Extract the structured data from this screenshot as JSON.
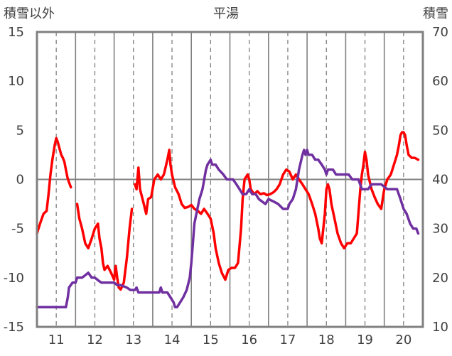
{
  "chart_data": {
    "type": "line",
    "title": "平湯",
    "left_axis_label": "積雪以外",
    "right_axis_label": "積雪",
    "x_ticks": [
      "11",
      "12",
      "13",
      "14",
      "15",
      "16",
      "17",
      "18",
      "19",
      "20"
    ],
    "x_range": [
      10.5,
      20.5
    ],
    "y_left": {
      "min": -15,
      "max": 15,
      "ticks": [
        "15",
        "10",
        "5",
        "0",
        "-5",
        "-10",
        "-15"
      ]
    },
    "y_right": {
      "min": 10,
      "max": 70,
      "ticks": [
        "70",
        "60",
        "50",
        "40",
        "30",
        "20",
        "10"
      ]
    },
    "grid": true,
    "colors": {
      "temperature": "#ff0000",
      "snow_depth": "#7030a0",
      "frame": "#808080",
      "grid": "#808080"
    },
    "series": [
      {
        "axis": "left",
        "color": "#ff0000",
        "segments": [
          [
            [
              10.5,
              -5.5
            ],
            [
              10.58,
              -4.5
            ],
            [
              10.67,
              -3.5
            ],
            [
              10.75,
              -3.2
            ],
            [
              10.8,
              -1.5
            ],
            [
              10.85,
              0.5
            ],
            [
              10.9,
              2
            ],
            [
              10.96,
              3.5
            ],
            [
              11.0,
              4.2
            ],
            [
              11.04,
              3.8
            ],
            [
              11.08,
              3.2
            ],
            [
              11.13,
              2.5
            ],
            [
              11.17,
              2.2
            ],
            [
              11.21,
              1.8
            ],
            [
              11.25,
              1
            ],
            [
              11.29,
              0.2
            ],
            [
              11.33,
              -0.3
            ],
            [
              11.38,
              -0.8
            ]
          ],
          [
            [
              11.54,
              -2.5
            ],
            [
              11.6,
              -4
            ],
            [
              11.67,
              -5
            ],
            [
              11.75,
              -6.5
            ],
            [
              11.83,
              -7
            ],
            [
              11.92,
              -6
            ],
            [
              12.0,
              -5
            ],
            [
              12.08,
              -4.5
            ],
            [
              12.12,
              -6
            ],
            [
              12.17,
              -7
            ],
            [
              12.21,
              -8.5
            ],
            [
              12.25,
              -9.2
            ],
            [
              12.33,
              -8.8
            ],
            [
              12.42,
              -9.5
            ],
            [
              12.5,
              -10.2
            ],
            [
              12.54,
              -8.8
            ],
            [
              12.58,
              -10
            ],
            [
              12.62,
              -11
            ],
            [
              12.67,
              -11.2
            ],
            [
              12.75,
              -10.5
            ],
            [
              12.83,
              -8
            ],
            [
              12.9,
              -5
            ],
            [
              12.96,
              -3
            ]
          ],
          [
            [
              13.04,
              -0.5
            ],
            [
              13.08,
              -1
            ],
            [
              13.13,
              1.2
            ],
            [
              13.17,
              -1
            ],
            [
              13.25,
              -2.2
            ],
            [
              13.33,
              -3.5
            ],
            [
              13.38,
              -2
            ],
            [
              13.46,
              -1.8
            ],
            [
              13.54,
              0
            ],
            [
              13.63,
              0.5
            ],
            [
              13.71,
              0
            ],
            [
              13.79,
              0.5
            ],
            [
              13.88,
              2
            ],
            [
              13.93,
              3
            ],
            [
              13.96,
              1.5
            ],
            [
              14.0,
              0.5
            ],
            [
              14.08,
              -0.8
            ],
            [
              14.17,
              -1.5
            ],
            [
              14.25,
              -2.5
            ],
            [
              14.33,
              -2.9
            ],
            [
              14.42,
              -2.8
            ],
            [
              14.5,
              -2.6
            ],
            [
              14.58,
              -3
            ],
            [
              14.67,
              -3.2
            ],
            [
              14.75,
              -3.5
            ],
            [
              14.83,
              -3
            ],
            [
              14.92,
              -3.5
            ],
            [
              15.0,
              -4
            ],
            [
              15.08,
              -5.5
            ],
            [
              15.13,
              -7
            ],
            [
              15.21,
              -8.5
            ],
            [
              15.29,
              -9.5
            ],
            [
              15.38,
              -10.2
            ],
            [
              15.46,
              -9.2
            ],
            [
              15.54,
              -9
            ],
            [
              15.63,
              -9
            ],
            [
              15.71,
              -8.5
            ],
            [
              15.79,
              -5
            ],
            [
              15.83,
              -2
            ],
            [
              15.88,
              0
            ],
            [
              15.96,
              0.5
            ],
            [
              16.0,
              0
            ],
            [
              16.04,
              -1
            ],
            [
              16.13,
              -1.5
            ],
            [
              16.21,
              -1.2
            ],
            [
              16.29,
              -1.5
            ],
            [
              16.38,
              -1.4
            ],
            [
              16.46,
              -1.6
            ],
            [
              16.54,
              -1.5
            ],
            [
              16.63,
              -1.3
            ],
            [
              16.71,
              -1
            ],
            [
              16.79,
              -0.5
            ],
            [
              16.88,
              0.5
            ],
            [
              16.96,
              1
            ],
            [
              17.04,
              0.8
            ],
            [
              17.13,
              0
            ],
            [
              17.21,
              0.5
            ],
            [
              17.29,
              0
            ],
            [
              17.38,
              -0.5
            ],
            [
              17.46,
              -1
            ],
            [
              17.54,
              -1.5
            ],
            [
              17.63,
              -2.5
            ],
            [
              17.71,
              -3.5
            ],
            [
              17.79,
              -5
            ],
            [
              17.83,
              -6
            ],
            [
              17.88,
              -6.5
            ],
            [
              17.92,
              -5
            ],
            [
              17.96,
              -3.5
            ],
            [
              18.0,
              -1
            ],
            [
              18.04,
              -0.5
            ],
            [
              18.08,
              -1
            ],
            [
              18.13,
              -2.5
            ],
            [
              18.21,
              -4
            ],
            [
              18.29,
              -5.5
            ],
            [
              18.38,
              -6.5
            ],
            [
              18.46,
              -7
            ],
            [
              18.54,
              -6.5
            ],
            [
              18.63,
              -6.5
            ],
            [
              18.71,
              -6
            ],
            [
              18.79,
              -5.5
            ],
            [
              18.83,
              -3.5
            ],
            [
              18.88,
              -1
            ],
            [
              18.92,
              0.5
            ],
            [
              18.96,
              1.5
            ],
            [
              19.0,
              2.8
            ],
            [
              19.04,
              2
            ],
            [
              19.08,
              0.5
            ],
            [
              19.17,
              -1
            ],
            [
              19.25,
              -1.8
            ],
            [
              19.33,
              -2.5
            ],
            [
              19.42,
              -3
            ],
            [
              19.46,
              -2
            ],
            [
              19.5,
              -1
            ],
            [
              19.58,
              0
            ],
            [
              19.67,
              0.5
            ],
            [
              19.75,
              1.5
            ],
            [
              19.83,
              2.5
            ],
            [
              19.88,
              3.5
            ],
            [
              19.92,
              4.5
            ],
            [
              19.96,
              4.8
            ],
            [
              20.0,
              4.8
            ],
            [
              20.04,
              4.5
            ],
            [
              20.08,
              3.5
            ],
            [
              20.13,
              2.5
            ],
            [
              20.21,
              2.2
            ],
            [
              20.29,
              2.2
            ],
            [
              20.38,
              2
            ]
          ]
        ]
      },
      {
        "axis": "right",
        "color": "#7030a0",
        "segments": [
          [
            [
              10.5,
              14
            ],
            [
              11.0,
              14
            ],
            [
              11.25,
              14
            ],
            [
              11.3,
              16
            ],
            [
              11.33,
              18
            ],
            [
              11.42,
              19
            ],
            [
              11.5,
              19
            ],
            [
              11.54,
              20
            ],
            [
              11.67,
              20
            ],
            [
              11.75,
              20.5
            ],
            [
              11.83,
              21
            ],
            [
              11.92,
              20
            ],
            [
              12.0,
              20
            ],
            [
              12.08,
              19.5
            ],
            [
              12.17,
              19
            ],
            [
              12.25,
              19
            ],
            [
              12.5,
              19
            ],
            [
              12.58,
              18.5
            ],
            [
              12.67,
              18.5
            ],
            [
              12.83,
              18
            ],
            [
              12.92,
              17.5
            ],
            [
              13.04,
              17.5
            ],
            [
              13.08,
              18
            ],
            [
              13.13,
              17
            ],
            [
              13.25,
              17
            ],
            [
              13.5,
              17
            ],
            [
              13.67,
              17
            ],
            [
              13.71,
              18
            ],
            [
              13.75,
              17
            ],
            [
              13.88,
              17
            ],
            [
              13.96,
              16
            ],
            [
              14.04,
              15
            ],
            [
              14.08,
              14
            ],
            [
              14.13,
              14
            ],
            [
              14.21,
              15
            ],
            [
              14.29,
              16
            ],
            [
              14.38,
              17.5
            ],
            [
              14.46,
              20
            ],
            [
              14.5,
              23
            ],
            [
              14.54,
              27
            ],
            [
              14.58,
              31
            ],
            [
              14.63,
              33
            ],
            [
              14.71,
              36
            ],
            [
              14.79,
              38
            ],
            [
              14.88,
              42
            ],
            [
              14.92,
              43
            ],
            [
              15.0,
              44
            ],
            [
              15.04,
              43
            ],
            [
              15.13,
              43
            ],
            [
              15.21,
              42
            ],
            [
              15.33,
              41
            ],
            [
              15.42,
              40
            ],
            [
              15.5,
              40
            ],
            [
              15.58,
              40
            ],
            [
              15.67,
              39
            ],
            [
              15.75,
              38
            ],
            [
              15.83,
              37
            ],
            [
              15.92,
              37
            ],
            [
              16.0,
              38
            ],
            [
              16.08,
              37
            ],
            [
              16.17,
              37
            ],
            [
              16.25,
              36
            ],
            [
              16.42,
              35
            ],
            [
              16.5,
              36
            ],
            [
              16.63,
              35.5
            ],
            [
              16.75,
              35
            ],
            [
              16.88,
              34
            ],
            [
              17.0,
              34
            ],
            [
              17.04,
              35
            ],
            [
              17.13,
              36
            ],
            [
              17.21,
              38
            ],
            [
              17.29,
              42
            ],
            [
              17.38,
              45
            ],
            [
              17.42,
              46
            ],
            [
              17.46,
              45
            ],
            [
              17.5,
              46
            ],
            [
              17.54,
              45
            ],
            [
              17.63,
              45
            ],
            [
              17.71,
              44
            ],
            [
              17.79,
              44
            ],
            [
              17.88,
              43
            ],
            [
              17.96,
              42
            ],
            [
              18.0,
              41
            ],
            [
              18.04,
              42
            ],
            [
              18.08,
              42
            ],
            [
              18.17,
              42
            ],
            [
              18.25,
              41
            ],
            [
              18.33,
              41
            ],
            [
              18.42,
              41
            ],
            [
              18.5,
              41
            ],
            [
              18.58,
              41
            ],
            [
              18.67,
              40
            ],
            [
              18.75,
              40
            ],
            [
              18.83,
              40
            ],
            [
              18.92,
              38
            ],
            [
              19.0,
              38
            ],
            [
              19.08,
              38
            ],
            [
              19.17,
              39
            ],
            [
              19.25,
              39
            ],
            [
              19.42,
              39
            ],
            [
              19.58,
              38
            ],
            [
              19.67,
              38
            ],
            [
              19.75,
              38
            ],
            [
              19.83,
              38
            ],
            [
              19.92,
              36
            ],
            [
              20.0,
              34
            ],
            [
              20.08,
              33
            ],
            [
              20.17,
              31
            ],
            [
              20.25,
              30
            ],
            [
              20.33,
              30
            ],
            [
              20.38,
              29
            ]
          ]
        ]
      }
    ]
  }
}
